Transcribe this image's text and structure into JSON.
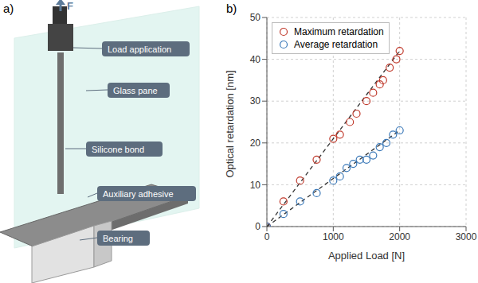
{
  "diagram": {
    "panel_label": "a)",
    "force_label": "F",
    "labels": [
      "Load application",
      "Glass pane",
      "Silicone bond",
      "Auxiliary adhesive",
      "Bearing"
    ]
  },
  "chart_data": {
    "type": "scatter",
    "panel_label": "b)",
    "x_label": "Applied Load [N]",
    "y_label": "Optical retardation [nm]",
    "xlim": [
      0,
      3000
    ],
    "xticks": [
      0,
      1000,
      2000,
      3000
    ],
    "ylim": [
      0,
      50
    ],
    "yticks": [
      0,
      10,
      20,
      30,
      40,
      50
    ],
    "grid": true,
    "legend": "upper left",
    "series": [
      {
        "name": "Maximum retardation",
        "color": "#c0392b",
        "marker": "open circle",
        "x": [
          0,
          250,
          500,
          750,
          1000,
          1100,
          1250,
          1350,
          1500,
          1600,
          1700,
          1750,
          1850,
          1950,
          2000
        ],
        "values": [
          0,
          6,
          11,
          16,
          21,
          22,
          25,
          27,
          30,
          32,
          34,
          35,
          38,
          40,
          42
        ],
        "fit": {
          "x": [
            0,
            2000
          ],
          "values": [
            0,
            42
          ],
          "line_style": "dashed",
          "color": "#333333"
        }
      },
      {
        "name": "Average retardation",
        "color": "#3a78b8",
        "marker": "open circle",
        "x": [
          0,
          250,
          500,
          750,
          1000,
          1100,
          1200,
          1300,
          1400,
          1500,
          1600,
          1700,
          1800,
          1900,
          2000
        ],
        "values": [
          0,
          3,
          6,
          8,
          11,
          12,
          14,
          15,
          16,
          16,
          17,
          19,
          20,
          22,
          23
        ],
        "fit": {
          "x": [
            0,
            2000
          ],
          "values": [
            0,
            23
          ],
          "line_style": "dashed",
          "color": "#333333"
        }
      }
    ]
  }
}
